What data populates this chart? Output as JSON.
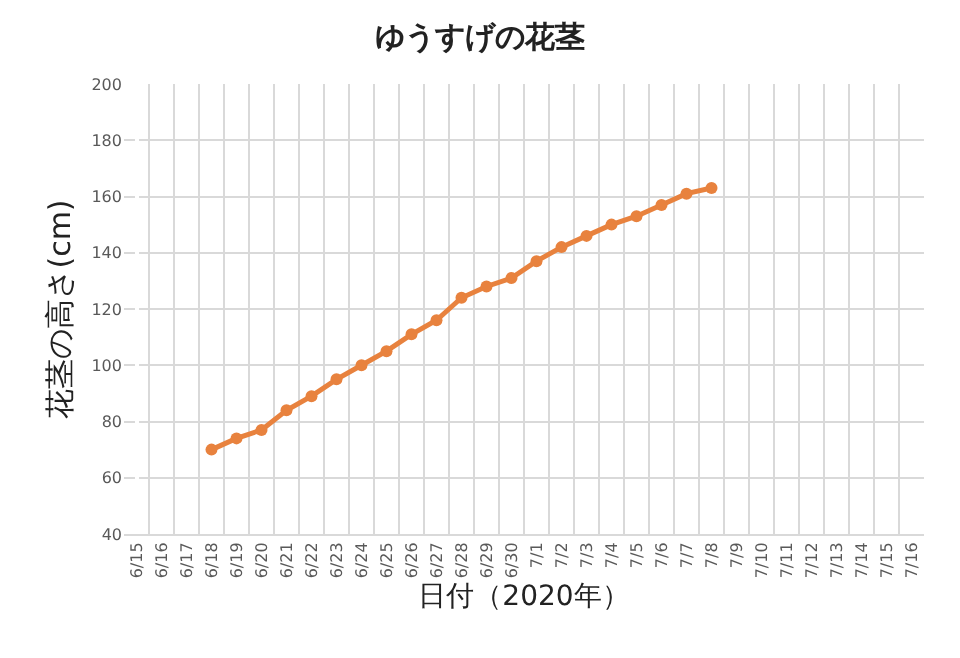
{
  "chart_data": {
    "type": "line",
    "title": "ゆうすげの花茎",
    "xlabel": "日付（2020年）",
    "ylabel": "花茎の高さ(cm)",
    "categories": [
      "6/15",
      "6/16",
      "6/17",
      "6/18",
      "6/19",
      "6/20",
      "6/21",
      "6/22",
      "6/23",
      "6/24",
      "6/25",
      "6/26",
      "6/27",
      "6/28",
      "6/29",
      "6/30",
      "7/1",
      "7/2",
      "7/3",
      "7/4",
      "7/5",
      "7/6",
      "7/7",
      "7/8",
      "7/9",
      "7/10",
      "7/11",
      "7/12",
      "7/13",
      "7/14",
      "7/15",
      "7/16"
    ],
    "series": [
      {
        "color": "#e8823e",
        "values": [
          null,
          null,
          null,
          70,
          74,
          77,
          84,
          89,
          95,
          100,
          105,
          111,
          116,
          124,
          128,
          131,
          137,
          142,
          146,
          150,
          153,
          157,
          161,
          163,
          null,
          null,
          null,
          null,
          null,
          null,
          null,
          null
        ]
      }
    ],
    "ylim": [
      40,
      200
    ],
    "yticks": [
      40,
      60,
      80,
      100,
      120,
      140,
      160,
      180,
      200
    ],
    "grid": true,
    "marker": "circle",
    "line_style": "solid"
  }
}
